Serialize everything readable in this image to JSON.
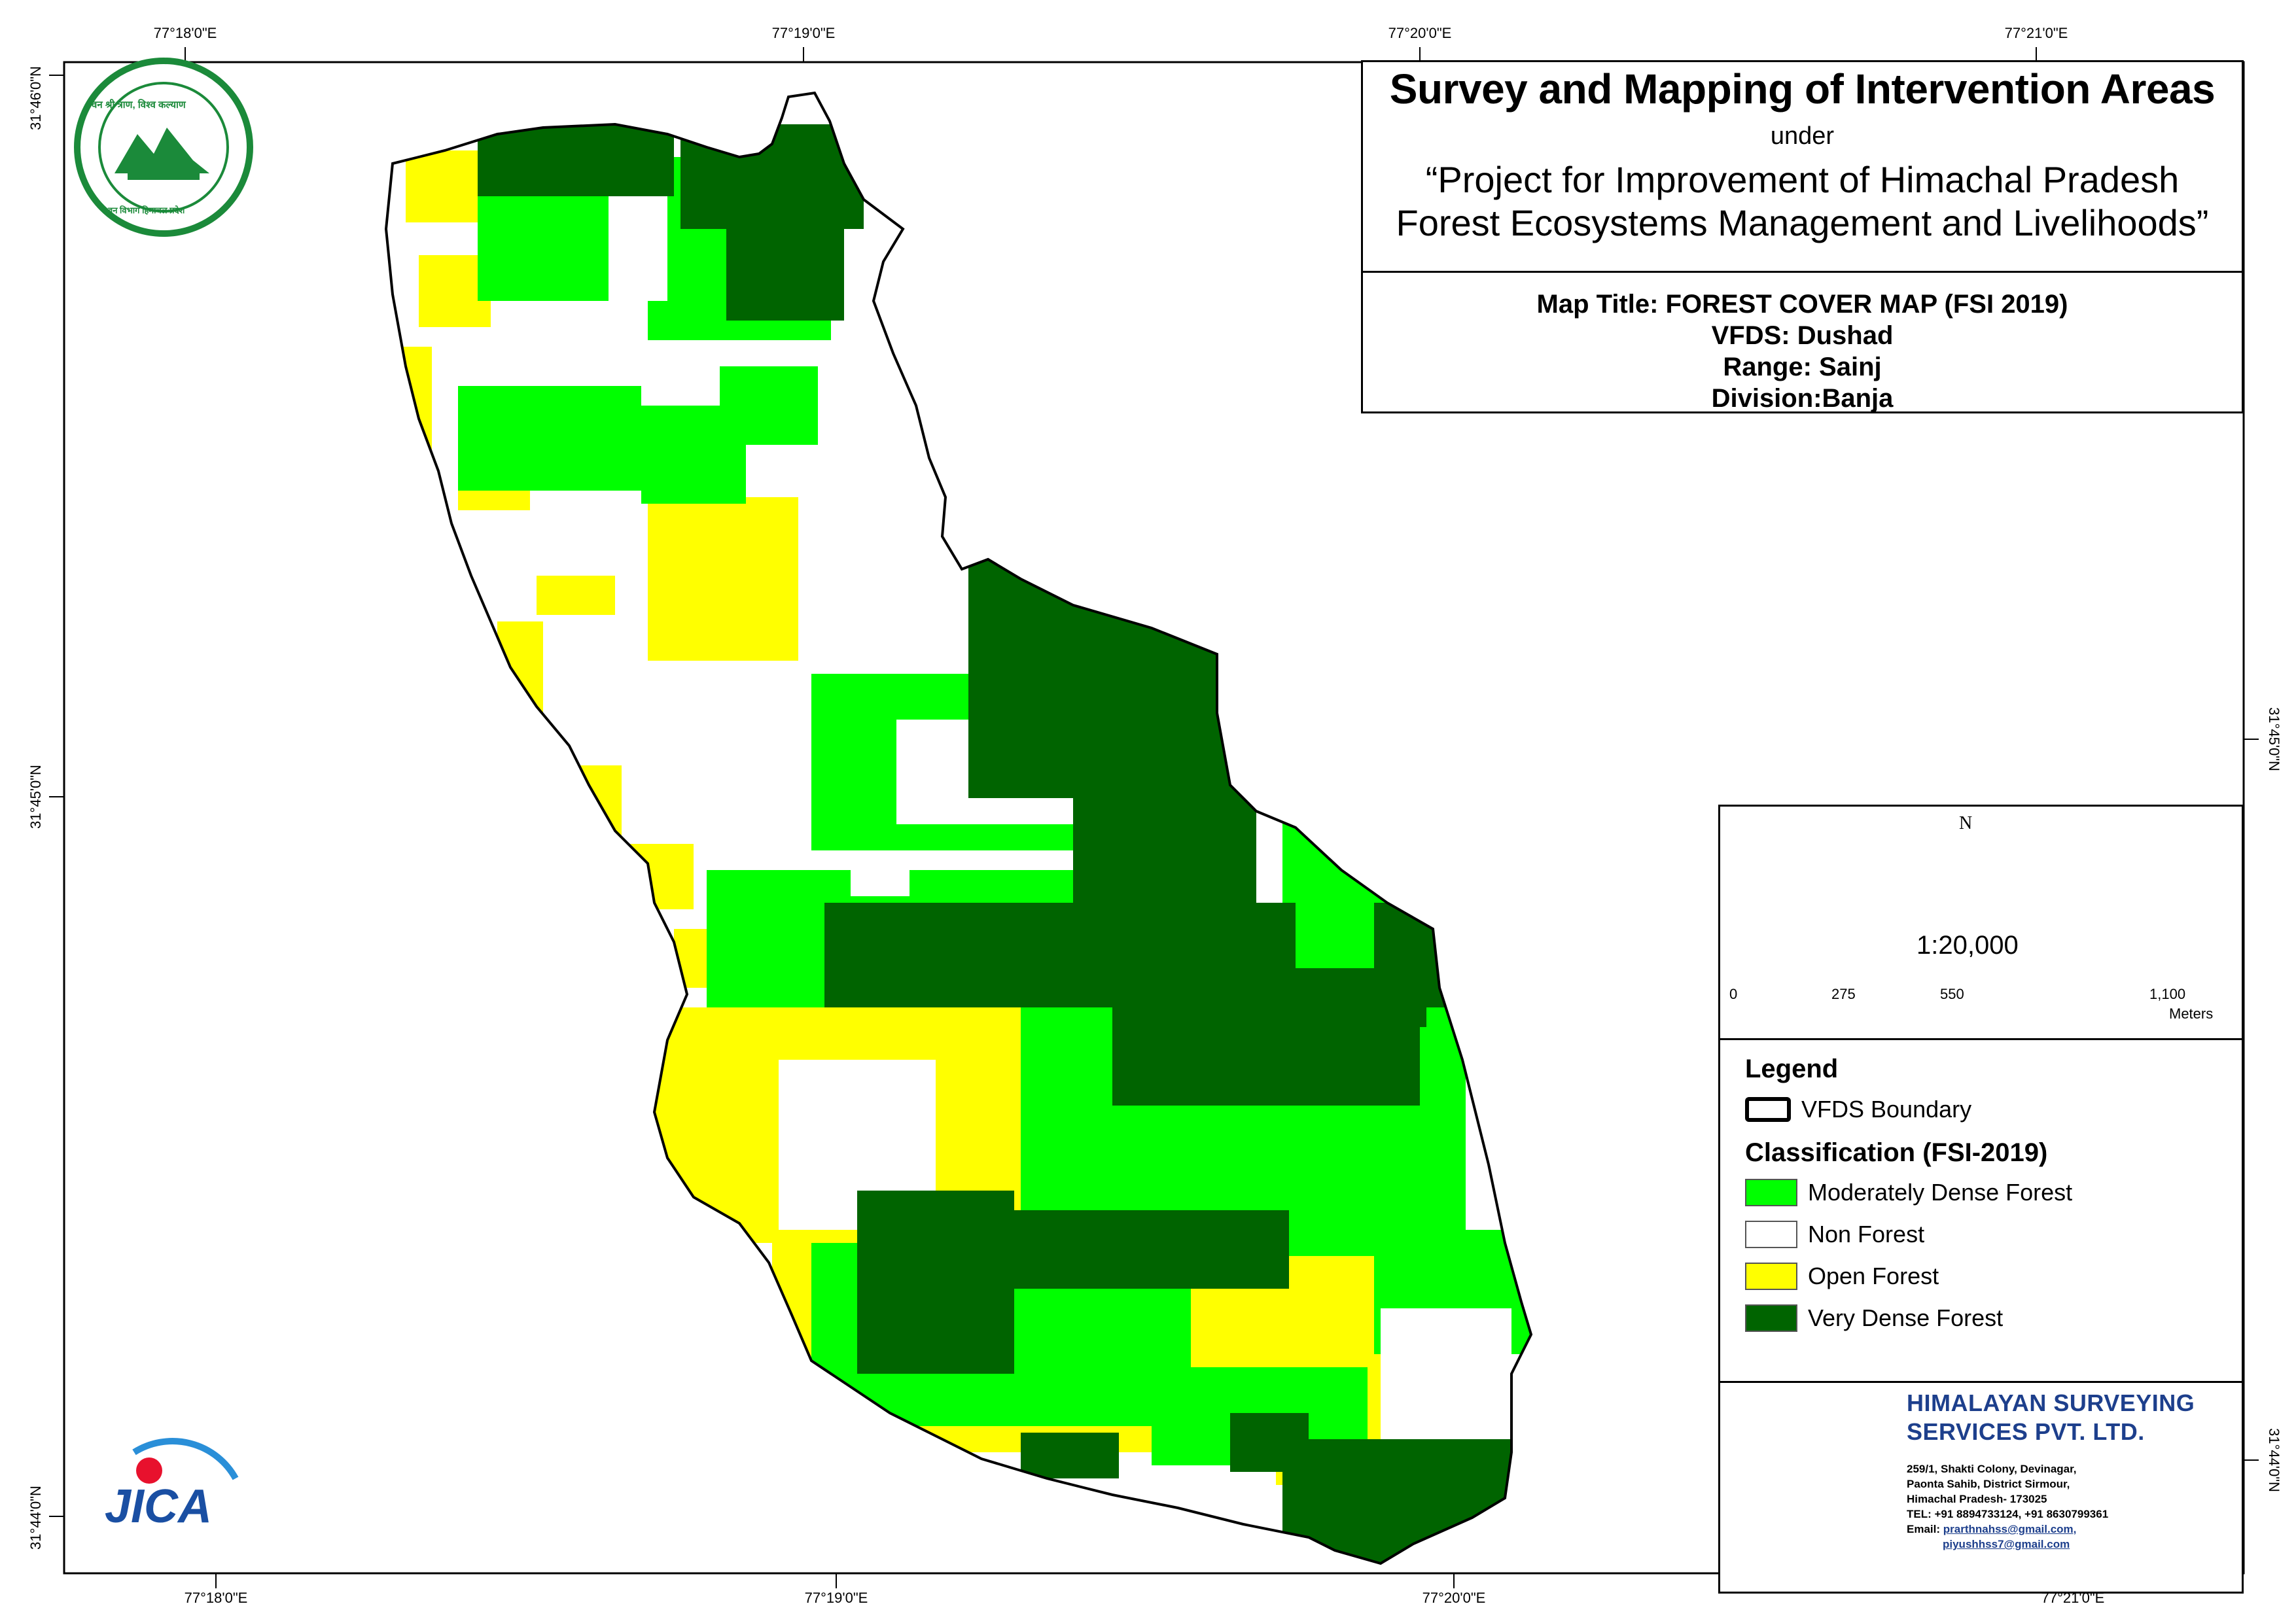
{
  "header": {
    "title": "Survey and Mapping of Intervention Areas",
    "under": "under",
    "project_line1": "“Project for Improvement of Himachal Pradesh",
    "project_line2": "Forest Ecosystems Management and Livelihoods”"
  },
  "map_info": {
    "map_title": "Map Title: FOREST COVER MAP (FSI 2019)",
    "vfds": "VFDS: Dushad",
    "range": "Range: Sainj",
    "division": "Division:Banja"
  },
  "graticule": {
    "top_longitudes": [
      "77°18'0\"E",
      "77°19'0\"E",
      "77°20'0\"E",
      "77°21'0\"E"
    ],
    "bottom_longitudes": [
      "77°18'0\"E",
      "77°19'0\"E",
      "77°20'0\"E",
      "77°21'0\"E"
    ],
    "left_latitudes": [
      "31°46'0\"N",
      "31°45'0\"N",
      "31°44'0\"N"
    ],
    "right_latitudes": [
      "31°45'0\"N",
      "31°44'0\"N"
    ]
  },
  "north_arrow": {
    "label": "N",
    "icon": "compass-rose-icon"
  },
  "scale": {
    "ratio": "1:20,000",
    "ticks": [
      "0",
      "275",
      "550",
      "1,100"
    ],
    "unit": "Meters"
  },
  "legend": {
    "title": "Legend",
    "boundary_label": "VFDS Boundary",
    "classification_title": "Classification (FSI-2019)",
    "classes": [
      {
        "label": "Moderately Dense Forest",
        "color": "#00ff00"
      },
      {
        "label": "Non Forest",
        "color": "#ffffff"
      },
      {
        "label": "Open Forest",
        "color": "#ffff00"
      },
      {
        "label": "Very Dense Forest",
        "color": "#006400"
      }
    ]
  },
  "company": {
    "name_line1": "HIMALAYAN SURVEYING",
    "name_line2": "SERVICES PVT. LTD.",
    "address1": "259/1, Shakti Colony, Devinagar,",
    "address2": "Paonta Sahib, District Sirmour,",
    "address3": "Himachal Pradesh- 173025",
    "tel": "TEL: +91 8894733124, +91 8630799361",
    "email_label": "Email:",
    "email1": "prarthnahss@gmail.com,",
    "email2": "piyushhss7@gmail.com",
    "icons": [
      "drone-icon",
      "globe-icon",
      "tripod-icon"
    ]
  },
  "logos": {
    "forest_dept_text": "वन श्री त्राण, विश्व कल्याण",
    "forest_dept_bottom": "वन विभाग हिमाचल प्रदेश",
    "jica_text": "JICA"
  },
  "colors": {
    "very_dense": "#006400",
    "moderate": "#00ff00",
    "open": "#ffff00",
    "non_forest": "#ffffff",
    "boundary": "#000000",
    "company_blue": "#1d3f8c"
  }
}
